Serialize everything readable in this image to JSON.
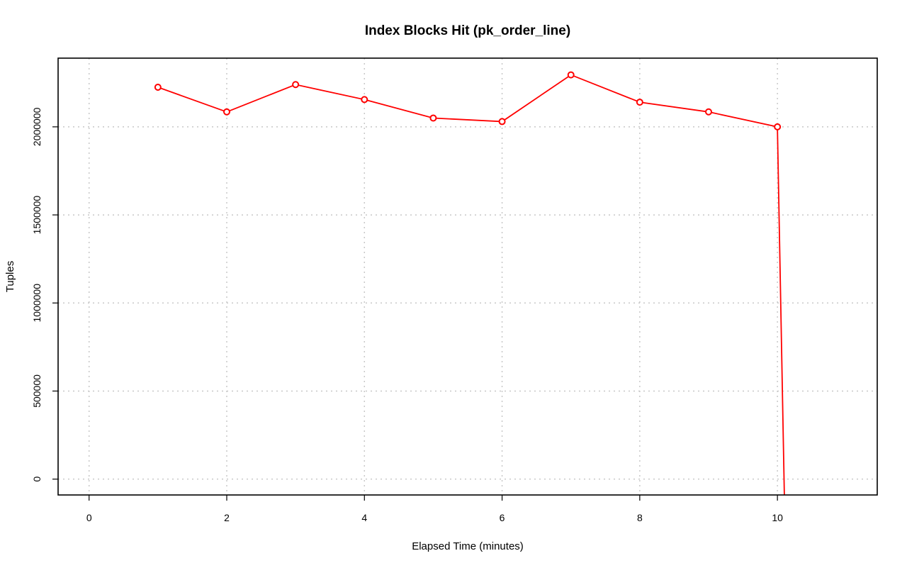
{
  "chart_data": {
    "type": "line",
    "title": "Index Blocks Hit (pk_order_line)",
    "xlabel": "Elapsed Time (minutes)",
    "ylabel": "Tuples",
    "xlim": [
      -0.45,
      11.45
    ],
    "ylim": [
      -90000,
      2390000
    ],
    "x_ticks": [
      0,
      2,
      4,
      6,
      8,
      10
    ],
    "x_tick_labels": [
      "0",
      "2",
      "4",
      "6",
      "8",
      "10"
    ],
    "y_ticks": [
      0,
      500000,
      1000000,
      1500000,
      2000000
    ],
    "y_tick_labels": [
      "0",
      "500000",
      "1000000",
      "1500000",
      "2000000"
    ],
    "grid": true,
    "legend": "none",
    "series": [
      {
        "color": "#ff0000",
        "marker": "open-circle",
        "x": [
          1,
          2,
          3,
          4,
          5,
          6,
          7,
          8,
          9,
          10,
          10.1
        ],
        "y": [
          2225000,
          2085000,
          2240000,
          2155000,
          2050000,
          2030000,
          2295000,
          2140000,
          2085000,
          2000000,
          -90000
        ],
        "marker_shown": [
          true,
          true,
          true,
          true,
          true,
          true,
          true,
          true,
          true,
          true,
          false
        ]
      }
    ]
  }
}
